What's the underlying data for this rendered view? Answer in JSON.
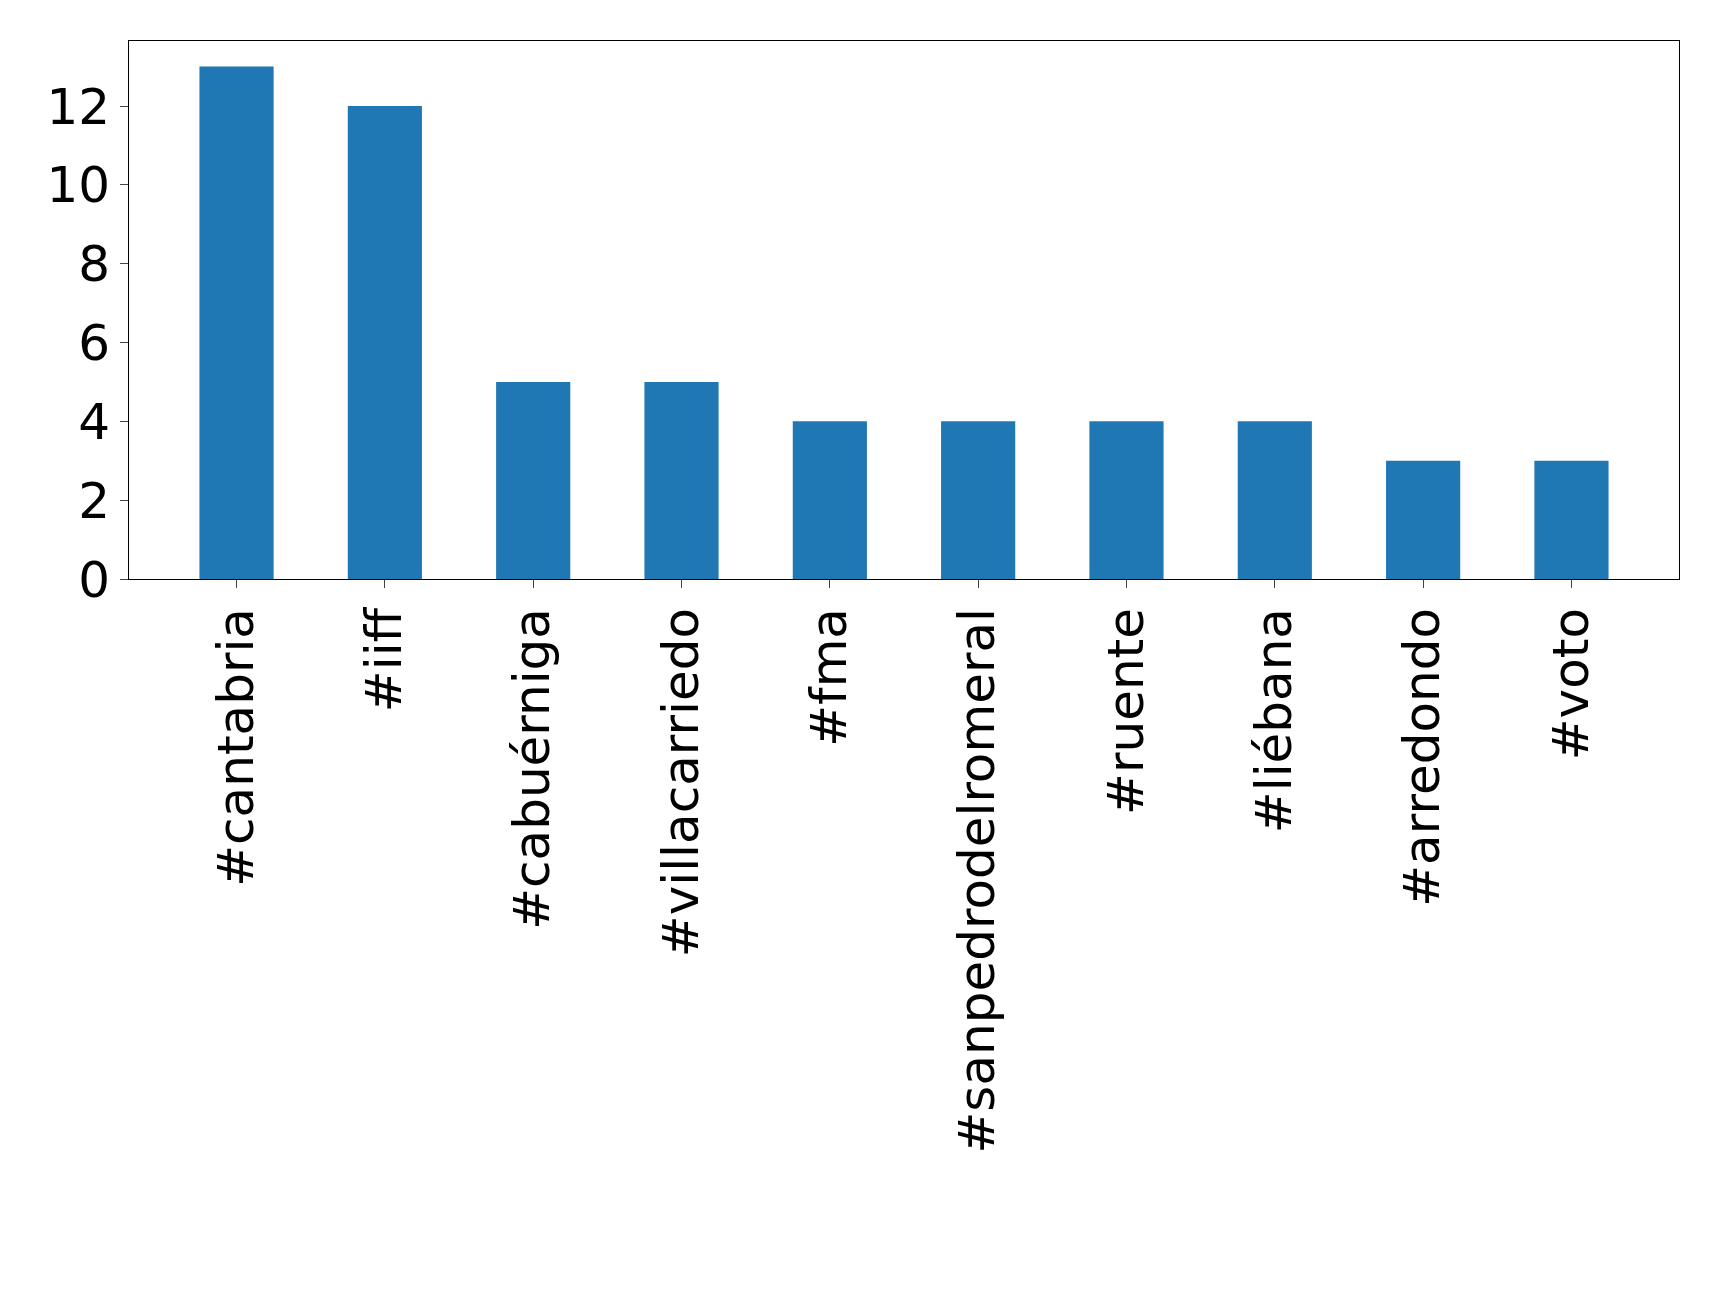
{
  "chart_data": {
    "type": "bar",
    "categories": [
      "#cantabria",
      "#iiff",
      "#cabuérniga",
      "#villacarriedo",
      "#fma",
      "#sanpedrodelromeral",
      "#ruente",
      "#liébana",
      "#arredondo",
      "#voto"
    ],
    "values": [
      13,
      12,
      5,
      5,
      4,
      4,
      4,
      4,
      3,
      3
    ],
    "color": "#1f77b4",
    "ylim": [
      0,
      13.65
    ],
    "yticks": [
      0,
      2,
      4,
      6,
      8,
      10,
      12
    ]
  }
}
